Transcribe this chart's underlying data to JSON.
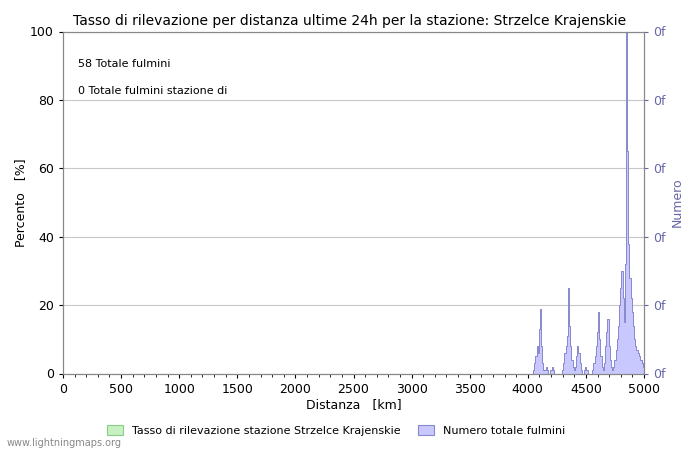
{
  "title": "Tasso di rilevazione per distanza ultime 24h per la stazione: Strzelce Krajenskie",
  "xlabel": "Distanza   [km]",
  "ylabel_left": "Percento   [%]",
  "ylabel_right": "Numero",
  "annotation_line1": "58 Totale fulmini",
  "annotation_line2": "0 Totale fulmini stazione di",
  "xlim": [
    0,
    5000
  ],
  "ylim_left": [
    0,
    100
  ],
  "right_ytick_labels": [
    "0f",
    "0f",
    "0f",
    "0f",
    "0f",
    "0f"
  ],
  "right_ytick_positions": [
    0,
    20,
    40,
    60,
    80,
    100
  ],
  "xticks": [
    0,
    500,
    1000,
    1500,
    2000,
    2500,
    3000,
    3500,
    4000,
    4500,
    5000
  ],
  "yticks_left": [
    0,
    20,
    40,
    60,
    80,
    100
  ],
  "legend_label_green": "Tasso di rilevazione stazione Strzelce Krajenskie",
  "legend_label_blue": "Numero totale fulmini",
  "fill_color": "#c8c8ff",
  "line_color": "#8888cc",
  "grid_color": "#c8c8c8",
  "watermark": "www.lightningmaps.org",
  "title_fontsize": 10,
  "axis_fontsize": 9,
  "tick_fontsize": 9,
  "spike_data": [
    [
      4050,
      1
    ],
    [
      4060,
      3
    ],
    [
      4070,
      5
    ],
    [
      4080,
      8
    ],
    [
      4090,
      6
    ],
    [
      4100,
      13
    ],
    [
      4110,
      19
    ],
    [
      4120,
      8
    ],
    [
      4130,
      3
    ],
    [
      4140,
      1
    ],
    [
      4150,
      1
    ],
    [
      4160,
      2
    ],
    [
      4170,
      1
    ],
    [
      4200,
      1
    ],
    [
      4210,
      2
    ],
    [
      4220,
      1
    ],
    [
      4300,
      1
    ],
    [
      4310,
      3
    ],
    [
      4320,
      6
    ],
    [
      4330,
      8
    ],
    [
      4340,
      11
    ],
    [
      4350,
      25
    ],
    [
      4360,
      14
    ],
    [
      4370,
      8
    ],
    [
      4380,
      4
    ],
    [
      4390,
      2
    ],
    [
      4400,
      1
    ],
    [
      4410,
      2
    ],
    [
      4420,
      5
    ],
    [
      4430,
      8
    ],
    [
      4440,
      6
    ],
    [
      4450,
      3
    ],
    [
      4460,
      1
    ],
    [
      4490,
      1
    ],
    [
      4500,
      2
    ],
    [
      4510,
      1
    ],
    [
      4560,
      1
    ],
    [
      4570,
      3
    ],
    [
      4580,
      5
    ],
    [
      4590,
      8
    ],
    [
      4600,
      12
    ],
    [
      4610,
      18
    ],
    [
      4620,
      10
    ],
    [
      4630,
      5
    ],
    [
      4640,
      2
    ],
    [
      4650,
      1
    ],
    [
      4660,
      3
    ],
    [
      4670,
      8
    ],
    [
      4680,
      12
    ],
    [
      4690,
      16
    ],
    [
      4700,
      8
    ],
    [
      4710,
      4
    ],
    [
      4720,
      2
    ],
    [
      4730,
      1
    ],
    [
      4740,
      2
    ],
    [
      4750,
      4
    ],
    [
      4760,
      7
    ],
    [
      4770,
      10
    ],
    [
      4780,
      14
    ],
    [
      4790,
      20
    ],
    [
      4800,
      25
    ],
    [
      4810,
      30
    ],
    [
      4820,
      22
    ],
    [
      4830,
      15
    ],
    [
      4840,
      32
    ],
    [
      4850,
      42
    ],
    [
      4855,
      100
    ],
    [
      4860,
      65
    ],
    [
      4870,
      38
    ],
    [
      4880,
      28
    ],
    [
      4890,
      22
    ],
    [
      4900,
      18
    ],
    [
      4910,
      14
    ],
    [
      4920,
      10
    ],
    [
      4930,
      8
    ],
    [
      4940,
      7
    ],
    [
      4950,
      6
    ],
    [
      4960,
      5
    ],
    [
      4970,
      4
    ],
    [
      4980,
      4
    ],
    [
      4990,
      3
    ],
    [
      5000,
      2
    ]
  ]
}
